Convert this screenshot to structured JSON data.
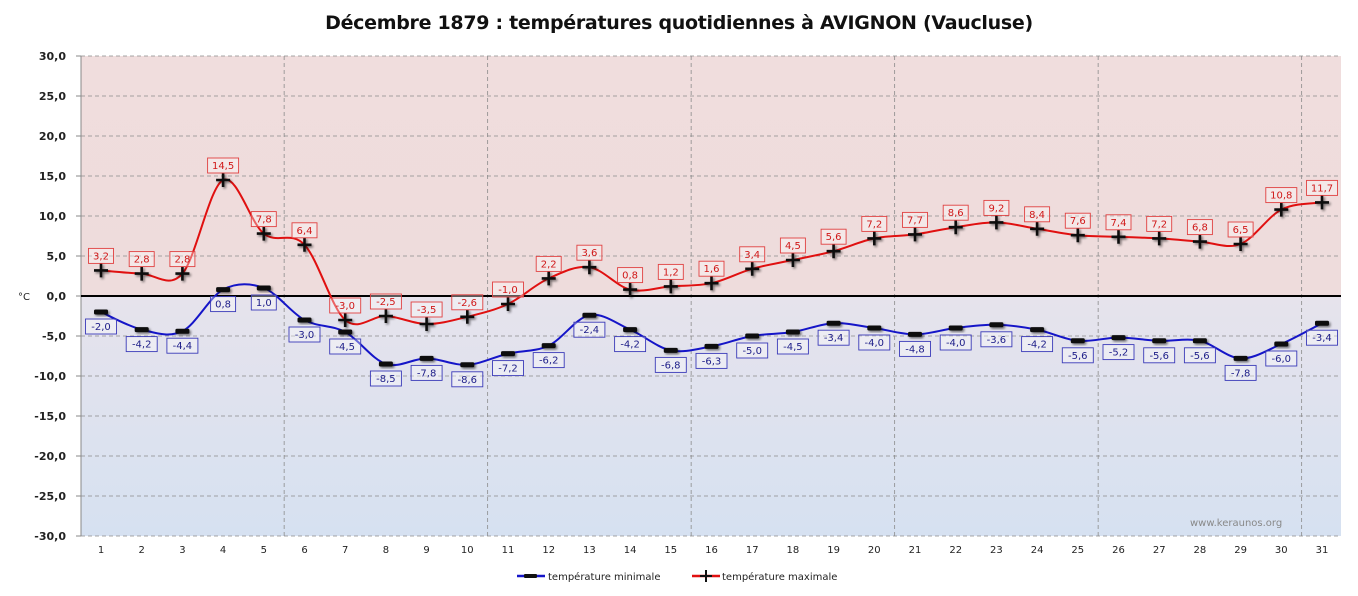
{
  "chart_data": {
    "type": "line",
    "title": "Décembre 1879 : températures quotidiennes à AVIGNON (Vaucluse)",
    "xlabel": "",
    "ylabel": "°C",
    "ylim": [
      -30,
      30
    ],
    "ytick_step": 5,
    "ytick_labels": [
      "30,0",
      "25,0",
      "20,0",
      "15,0",
      "10,0",
      "5,0",
      "0,0",
      "-5,0",
      "-10,0",
      "-15,0",
      "-20,0",
      "-25,0",
      "-30,0"
    ],
    "grid": true,
    "categories": [
      "1",
      "2",
      "3",
      "4",
      "5",
      "6",
      "7",
      "8",
      "9",
      "10",
      "11",
      "12",
      "13",
      "14",
      "15",
      "16",
      "17",
      "18",
      "19",
      "20",
      "21",
      "22",
      "23",
      "24",
      "25",
      "26",
      "27",
      "28",
      "29",
      "30",
      "31"
    ],
    "series": [
      {
        "name": "température minimale",
        "color": "#1515c8",
        "marker": "dash",
        "values": [
          -2.0,
          -4.2,
          -4.4,
          0.8,
          1.0,
          -3.0,
          -4.5,
          -8.5,
          -7.8,
          -8.6,
          -7.2,
          -6.2,
          -2.4,
          -4.2,
          -6.8,
          -6.3,
          -5.0,
          -4.5,
          -3.4,
          -4.0,
          -4.8,
          -4.0,
          -3.6,
          -4.2,
          -5.6,
          -5.2,
          -5.6,
          -5.6,
          -7.8,
          -6.0,
          -3.4
        ],
        "labels": [
          "-2,0",
          "-4,2",
          "-4,4",
          "0,8",
          "1,0",
          "-3,0",
          "-4,5",
          "-8,5",
          "-7,8",
          "-8,6",
          "-7,2",
          "-6,2",
          "-2,4",
          "-4,2",
          "-6,8",
          "-6,3",
          "-5,0",
          "-4,5",
          "-3,4",
          "-4,0",
          "-4,8",
          "-4,0",
          "-3,6",
          "-4,2",
          "-5,6",
          "-5,2",
          "-5,6",
          "-5,6",
          "-7,8",
          "-6,0",
          "-3,4"
        ]
      },
      {
        "name": "température maximale",
        "color": "#e01010",
        "marker": "plus",
        "values": [
          3.2,
          2.8,
          2.8,
          14.5,
          7.8,
          6.4,
          -3.0,
          -2.5,
          -3.5,
          -2.6,
          -1.0,
          2.2,
          3.6,
          0.8,
          1.2,
          1.6,
          3.4,
          4.5,
          5.6,
          7.2,
          7.7,
          8.6,
          9.2,
          8.4,
          7.6,
          7.4,
          7.2,
          6.8,
          6.5,
          10.8,
          11.7
        ],
        "labels": [
          "3,2",
          "2,8",
          "2,8",
          "14,5",
          "7,8",
          "6,4",
          "-3,0",
          "-2,5",
          "-3,5",
          "-2,6",
          "-1,0",
          "2,2",
          "3,6",
          "0,8",
          "1,2",
          "1,6",
          "3,4",
          "4,5",
          "5,6",
          "7,2",
          "7,7",
          "8,6",
          "9,2",
          "8,4",
          "7,6",
          "7,4",
          "7,2",
          "6,8",
          "6,5",
          "10,8",
          "11,7"
        ]
      }
    ],
    "legend_position": "bottom",
    "background_top_color": "#f1dede",
    "background_bottom_color": "#dbe3f1",
    "watermark": "www.keraunos.org"
  }
}
